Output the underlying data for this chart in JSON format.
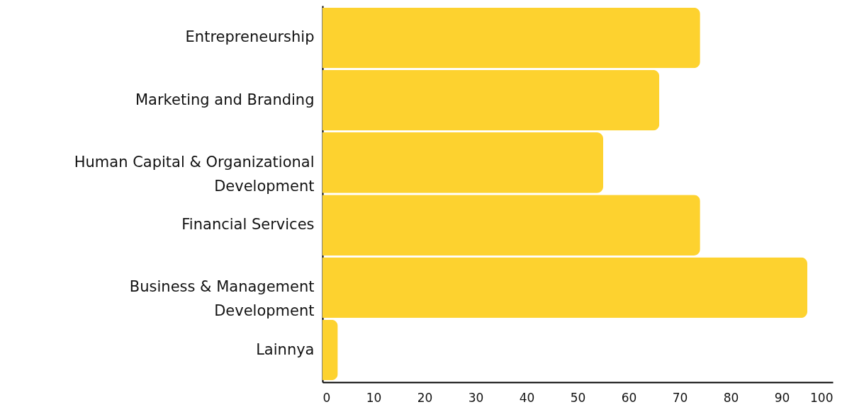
{
  "chart_data": {
    "type": "bar",
    "orientation": "horizontal",
    "categories": [
      "Entrepreneurship",
      "Marketing and Branding",
      "Human Capital & Organizational\nDevelopment",
      "Financial Services",
      "Business & Management\nDevelopment",
      "Lainnya"
    ],
    "values": [
      74,
      66,
      55,
      74,
      95,
      3
    ],
    "color": "#fdd22f",
    "xlim": [
      0,
      100
    ],
    "xticks": [
      0,
      10,
      20,
      30,
      40,
      50,
      60,
      70,
      80,
      90,
      100
    ],
    "grid": false
  }
}
